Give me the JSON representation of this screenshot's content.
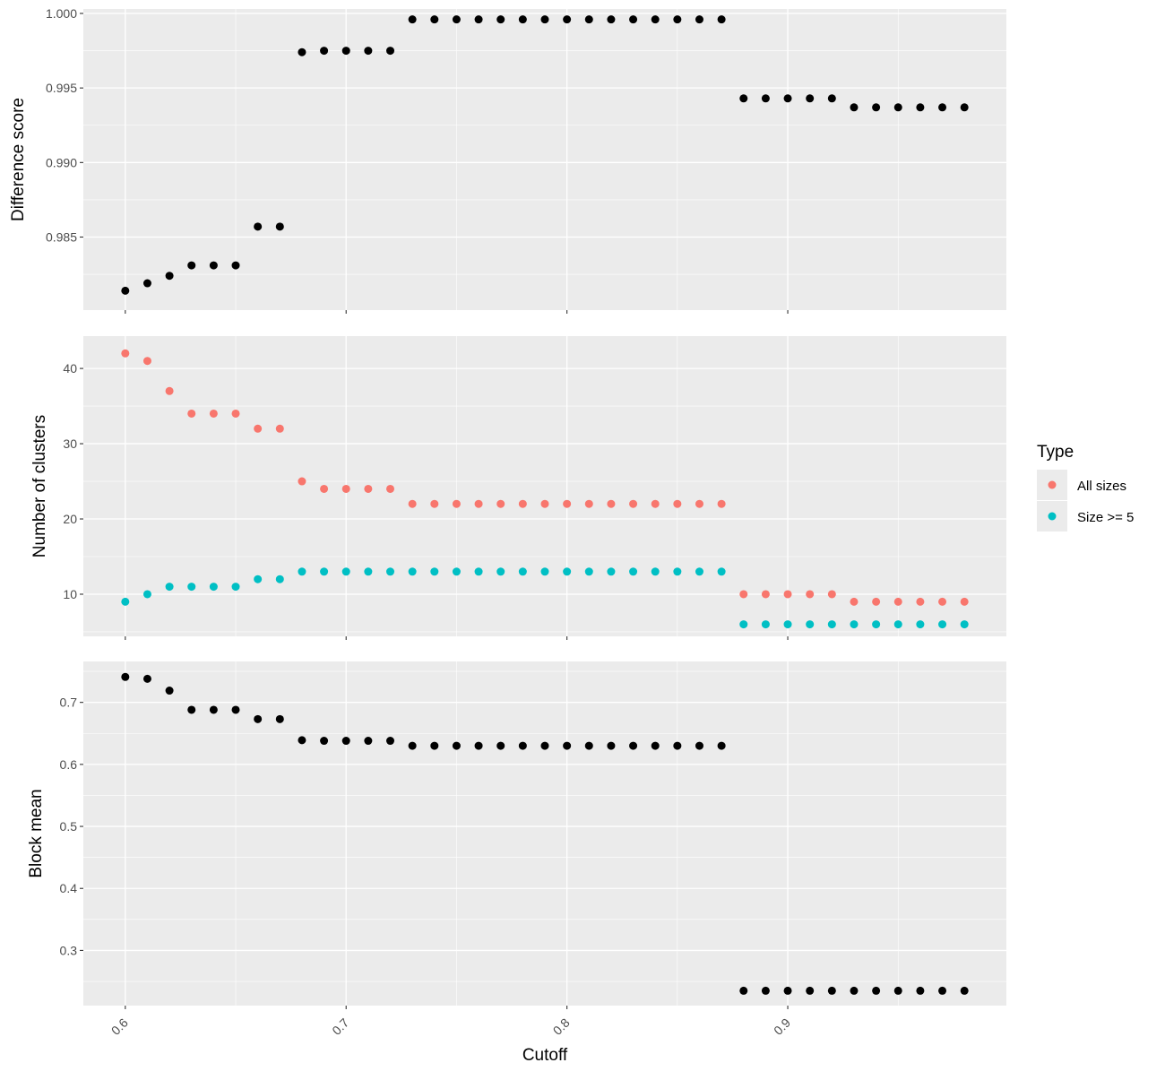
{
  "chart_data": [
    {
      "type": "scatter",
      "panel": "difference",
      "ylabel": "Difference score",
      "xlim": [
        0.581,
        0.999
      ],
      "ylim": [
        0.9801,
        1.0003
      ],
      "yticks": [
        0.985,
        0.99,
        0.995,
        1.0
      ],
      "ytick_labels": [
        "0.985",
        "0.990",
        "0.995",
        "1.000"
      ],
      "grid": true,
      "series": [
        {
          "color": "#000000",
          "points": [
            [
              0.6,
              0.9814
            ],
            [
              0.61,
              0.9819
            ],
            [
              0.62,
              0.9824
            ],
            [
              0.63,
              0.9831
            ],
            [
              0.64,
              0.9831
            ],
            [
              0.65,
              0.9831
            ],
            [
              0.66,
              0.9857
            ],
            [
              0.67,
              0.9857
            ],
            [
              0.68,
              0.9974
            ],
            [
              0.69,
              0.9975
            ],
            [
              0.7,
              0.9975
            ],
            [
              0.71,
              0.9975
            ],
            [
              0.72,
              0.9975
            ],
            [
              0.73,
              0.9996
            ],
            [
              0.74,
              0.9996
            ],
            [
              0.75,
              0.9996
            ],
            [
              0.76,
              0.9996
            ],
            [
              0.77,
              0.9996
            ],
            [
              0.78,
              0.9996
            ],
            [
              0.79,
              0.9996
            ],
            [
              0.8,
              0.9996
            ],
            [
              0.81,
              0.9996
            ],
            [
              0.82,
              0.9996
            ],
            [
              0.83,
              0.9996
            ],
            [
              0.84,
              0.9996
            ],
            [
              0.85,
              0.9996
            ],
            [
              0.86,
              0.9996
            ],
            [
              0.87,
              0.9996
            ],
            [
              0.88,
              0.9943
            ],
            [
              0.89,
              0.9943
            ],
            [
              0.9,
              0.9943
            ],
            [
              0.91,
              0.9943
            ],
            [
              0.92,
              0.9943
            ],
            [
              0.93,
              0.9937
            ],
            [
              0.94,
              0.9937
            ],
            [
              0.95,
              0.9937
            ],
            [
              0.96,
              0.9937
            ],
            [
              0.97,
              0.9937
            ],
            [
              0.98,
              0.9937
            ]
          ]
        }
      ]
    },
    {
      "type": "scatter",
      "panel": "clusters",
      "ylabel": "Number of clusters",
      "xlim": [
        0.581,
        0.999
      ],
      "ylim": [
        4.4,
        44.3
      ],
      "yticks": [
        10,
        20,
        30,
        40
      ],
      "ytick_labels": [
        "10",
        "20",
        "30",
        "40"
      ],
      "grid": true,
      "series": [
        {
          "name": "All sizes",
          "color": "#F8766D",
          "points": [
            [
              0.6,
              42
            ],
            [
              0.61,
              41
            ],
            [
              0.62,
              37
            ],
            [
              0.63,
              34
            ],
            [
              0.64,
              34
            ],
            [
              0.65,
              34
            ],
            [
              0.66,
              32
            ],
            [
              0.67,
              32
            ],
            [
              0.68,
              25
            ],
            [
              0.69,
              24
            ],
            [
              0.7,
              24
            ],
            [
              0.71,
              24
            ],
            [
              0.72,
              24
            ],
            [
              0.73,
              22
            ],
            [
              0.74,
              22
            ],
            [
              0.75,
              22
            ],
            [
              0.76,
              22
            ],
            [
              0.77,
              22
            ],
            [
              0.78,
              22
            ],
            [
              0.79,
              22
            ],
            [
              0.8,
              22
            ],
            [
              0.81,
              22
            ],
            [
              0.82,
              22
            ],
            [
              0.83,
              22
            ],
            [
              0.84,
              22
            ],
            [
              0.85,
              22
            ],
            [
              0.86,
              22
            ],
            [
              0.87,
              22
            ],
            [
              0.88,
              10
            ],
            [
              0.89,
              10
            ],
            [
              0.9,
              10
            ],
            [
              0.91,
              10
            ],
            [
              0.92,
              10
            ],
            [
              0.93,
              9
            ],
            [
              0.94,
              9
            ],
            [
              0.95,
              9
            ],
            [
              0.96,
              9
            ],
            [
              0.97,
              9
            ],
            [
              0.98,
              9
            ]
          ]
        },
        {
          "name": "Size >= 5",
          "color": "#00BFC4",
          "points": [
            [
              0.6,
              9
            ],
            [
              0.61,
              10
            ],
            [
              0.62,
              11
            ],
            [
              0.63,
              11
            ],
            [
              0.64,
              11
            ],
            [
              0.65,
              11
            ],
            [
              0.66,
              12
            ],
            [
              0.67,
              12
            ],
            [
              0.68,
              13
            ],
            [
              0.69,
              13
            ],
            [
              0.7,
              13
            ],
            [
              0.71,
              13
            ],
            [
              0.72,
              13
            ],
            [
              0.73,
              13
            ],
            [
              0.74,
              13
            ],
            [
              0.75,
              13
            ],
            [
              0.76,
              13
            ],
            [
              0.77,
              13
            ],
            [
              0.78,
              13
            ],
            [
              0.79,
              13
            ],
            [
              0.8,
              13
            ],
            [
              0.81,
              13
            ],
            [
              0.82,
              13
            ],
            [
              0.83,
              13
            ],
            [
              0.84,
              13
            ],
            [
              0.85,
              13
            ],
            [
              0.86,
              13
            ],
            [
              0.87,
              13
            ],
            [
              0.88,
              6
            ],
            [
              0.89,
              6
            ],
            [
              0.9,
              6
            ],
            [
              0.91,
              6
            ],
            [
              0.92,
              6
            ],
            [
              0.93,
              6
            ],
            [
              0.94,
              6
            ],
            [
              0.95,
              6
            ],
            [
              0.96,
              6
            ],
            [
              0.97,
              6
            ],
            [
              0.98,
              6
            ]
          ]
        }
      ]
    },
    {
      "type": "scatter",
      "panel": "blockmean",
      "ylabel": "Block mean",
      "xlabel": "Cutoff",
      "xlim": [
        0.581,
        0.999
      ],
      "ylim": [
        0.211,
        0.766
      ],
      "yticks": [
        0.3,
        0.4,
        0.5,
        0.6,
        0.7
      ],
      "ytick_labels": [
        "0.3",
        "0.4",
        "0.5",
        "0.6",
        "0.7"
      ],
      "xticks": [
        0.6,
        0.7,
        0.8,
        0.9
      ],
      "xtick_labels": [
        "0.6",
        "0.7",
        "0.8",
        "0.9"
      ],
      "grid": true,
      "series": [
        {
          "color": "#000000",
          "points": [
            [
              0.6,
              0.741
            ],
            [
              0.61,
              0.738
            ],
            [
              0.62,
              0.719
            ],
            [
              0.63,
              0.688
            ],
            [
              0.64,
              0.688
            ],
            [
              0.65,
              0.688
            ],
            [
              0.66,
              0.673
            ],
            [
              0.67,
              0.673
            ],
            [
              0.68,
              0.639
            ],
            [
              0.69,
              0.638
            ],
            [
              0.7,
              0.638
            ],
            [
              0.71,
              0.638
            ],
            [
              0.72,
              0.638
            ],
            [
              0.73,
              0.63
            ],
            [
              0.74,
              0.63
            ],
            [
              0.75,
              0.63
            ],
            [
              0.76,
              0.63
            ],
            [
              0.77,
              0.63
            ],
            [
              0.78,
              0.63
            ],
            [
              0.79,
              0.63
            ],
            [
              0.8,
              0.63
            ],
            [
              0.81,
              0.63
            ],
            [
              0.82,
              0.63
            ],
            [
              0.83,
              0.63
            ],
            [
              0.84,
              0.63
            ],
            [
              0.85,
              0.63
            ],
            [
              0.86,
              0.63
            ],
            [
              0.87,
              0.63
            ],
            [
              0.88,
              0.235
            ],
            [
              0.89,
              0.235
            ],
            [
              0.9,
              0.235
            ],
            [
              0.91,
              0.235
            ],
            [
              0.92,
              0.235
            ],
            [
              0.93,
              0.235
            ],
            [
              0.94,
              0.235
            ],
            [
              0.95,
              0.235
            ],
            [
              0.96,
              0.235
            ],
            [
              0.97,
              0.235
            ],
            [
              0.98,
              0.235
            ]
          ]
        }
      ]
    }
  ],
  "legend": {
    "title": "Type",
    "placement": "right",
    "items": [
      {
        "label": "All sizes",
        "color": "#F8766D"
      },
      {
        "label": "Size >= 5",
        "color": "#00BFC4"
      }
    ]
  }
}
